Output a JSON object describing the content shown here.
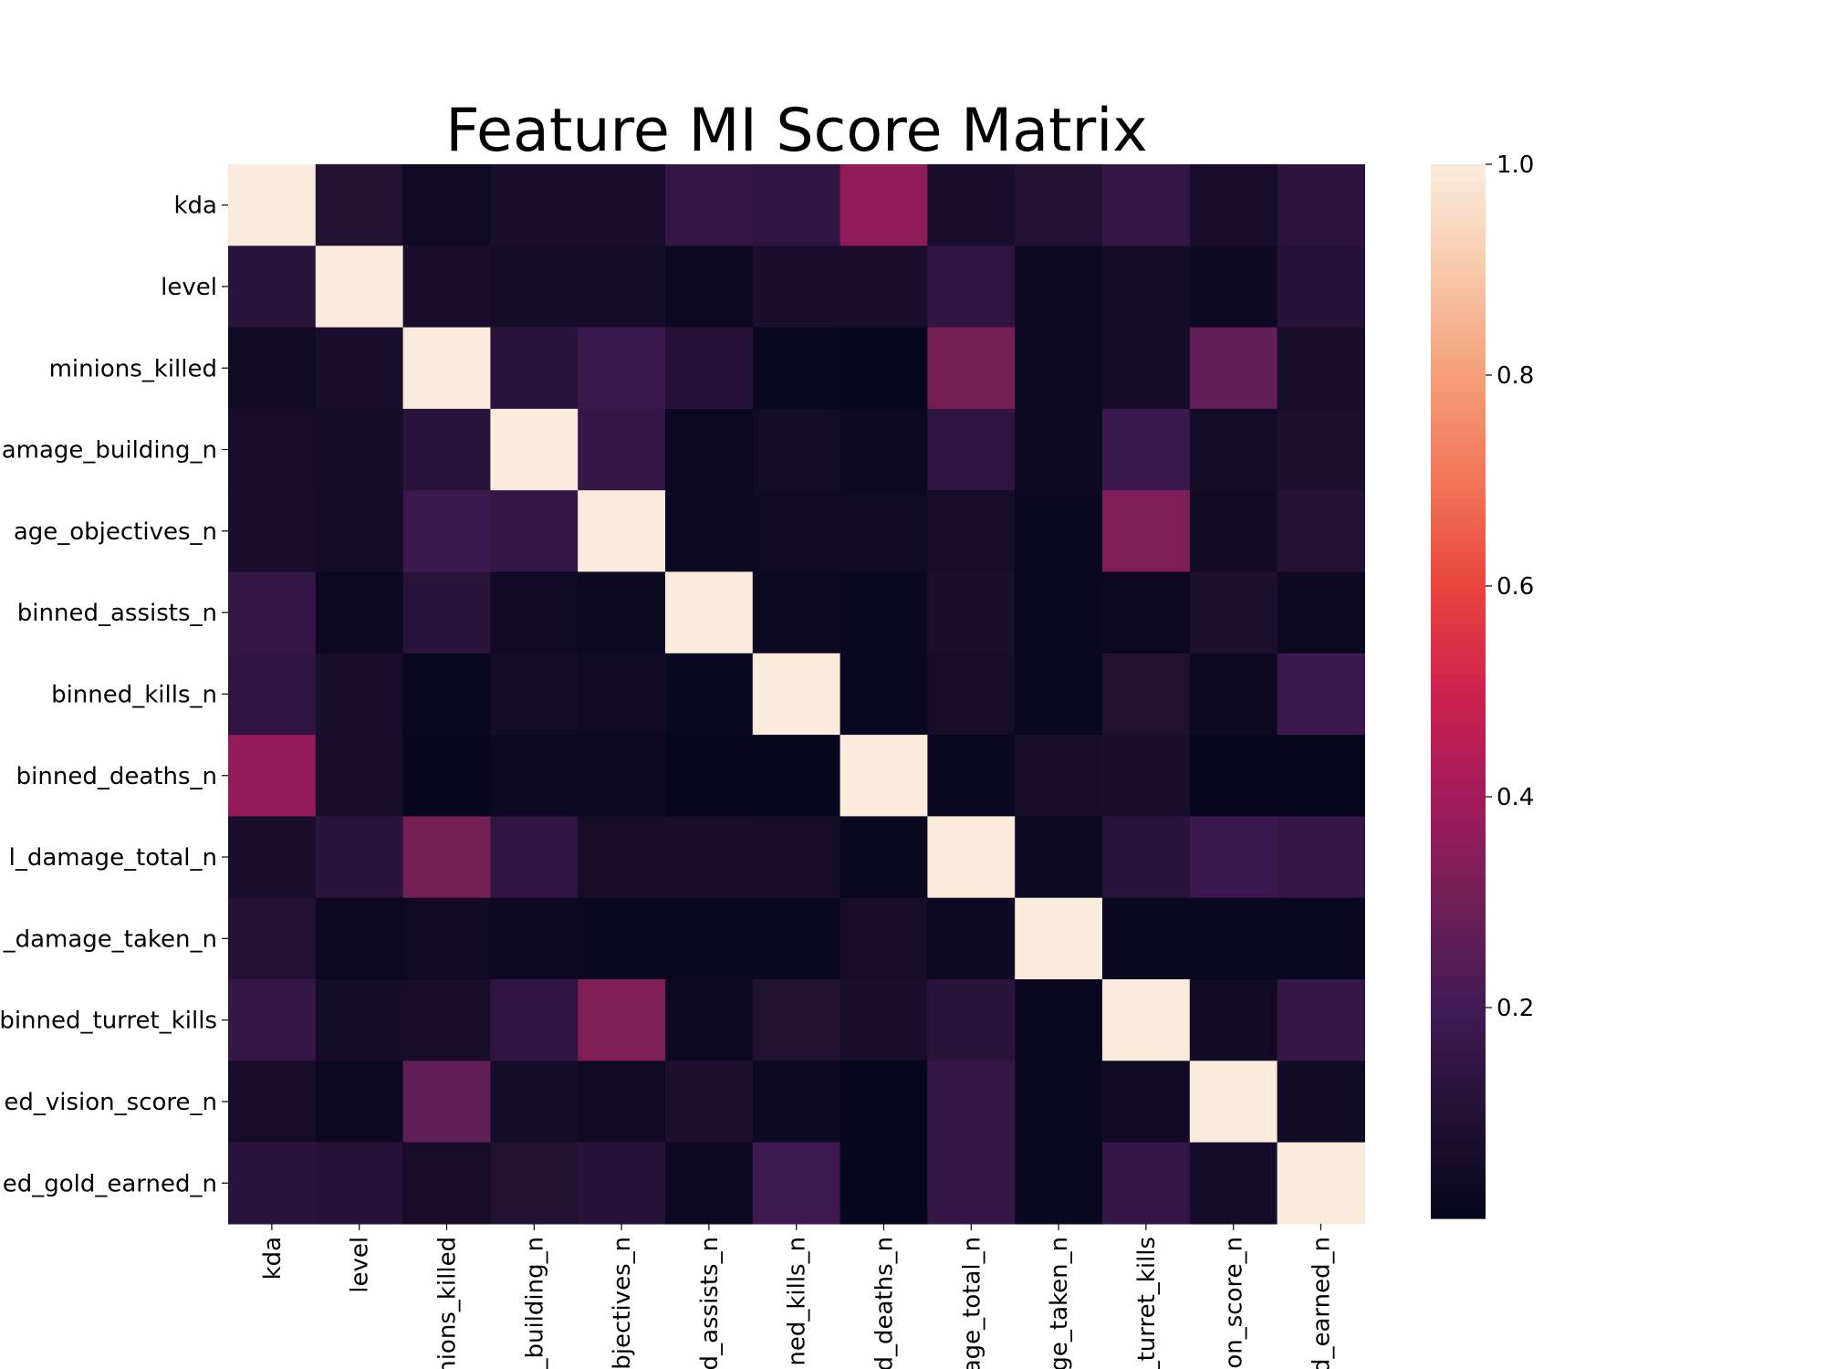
{
  "chart_data": {
    "type": "heatmap",
    "title": "Feature MI Score Matrix",
    "colormap": "rocket",
    "row_labels": [
      "kda",
      "level",
      "minions_killed",
      "damage_building_n",
      "damage_objectives_n",
      "binned_assists_n",
      "binned_kills_n",
      "binned_deaths_n",
      "binned_damage_total_n",
      "binned_damage_taken_n",
      "binned_turret_kills",
      "binned_vision_score_n",
      "binned_gold_earned_n"
    ],
    "visible_row_labels": [
      "kda",
      "level",
      "minions_killed",
      "amage_building_n",
      "age_objectives_n",
      "binned_assists_n",
      "binned_kills_n",
      "binned_deaths_n",
      "l_damage_total_n",
      "_damage_taken_n",
      "binned_turret_kills",
      "ed_vision_score_n",
      "ed_gold_earned_n"
    ],
    "visible_column_labels": [
      "kda",
      "level",
      "inions_killed",
      "_building_n",
      "bjectives_n",
      "d_assists_n",
      "ned_kills_n",
      "d_deaths_n",
      "age_total_n",
      "ge_taken_n",
      "_turret_kills",
      "on_score_n",
      "d_earned_n"
    ],
    "values": [
      [
        1.0,
        0.09,
        0.04,
        0.07,
        0.07,
        0.15,
        0.14,
        0.36,
        0.07,
        0.1,
        0.16,
        0.06,
        0.13
      ],
      [
        0.12,
        1.0,
        0.07,
        0.05,
        0.05,
        0.03,
        0.07,
        0.07,
        0.14,
        0.03,
        0.05,
        0.03,
        0.11
      ],
      [
        0.04,
        0.07,
        1.0,
        0.12,
        0.18,
        0.11,
        0.02,
        0.01,
        0.31,
        0.03,
        0.05,
        0.27,
        0.06
      ],
      [
        0.06,
        0.05,
        0.12,
        1.0,
        0.16,
        0.03,
        0.05,
        0.03,
        0.14,
        0.03,
        0.18,
        0.05,
        0.08
      ],
      [
        0.07,
        0.05,
        0.18,
        0.16,
        1.0,
        0.03,
        0.04,
        0.04,
        0.06,
        0.02,
        0.33,
        0.04,
        0.1
      ],
      [
        0.15,
        0.03,
        0.12,
        0.04,
        0.03,
        1.0,
        0.03,
        0.02,
        0.07,
        0.02,
        0.03,
        0.08,
        0.03
      ],
      [
        0.14,
        0.07,
        0.02,
        0.05,
        0.04,
        0.02,
        1.0,
        0.02,
        0.06,
        0.02,
        0.09,
        0.03,
        0.18
      ],
      [
        0.37,
        0.07,
        0.01,
        0.03,
        0.03,
        0.01,
        0.01,
        1.0,
        0.02,
        0.06,
        0.07,
        0.01,
        0.01
      ],
      [
        0.07,
        0.12,
        0.31,
        0.14,
        0.06,
        0.07,
        0.06,
        0.02,
        1.0,
        0.03,
        0.12,
        0.18,
        0.16
      ],
      [
        0.1,
        0.03,
        0.04,
        0.03,
        0.02,
        0.02,
        0.02,
        0.06,
        0.03,
        1.0,
        0.02,
        0.02,
        0.02
      ],
      [
        0.16,
        0.05,
        0.06,
        0.14,
        0.33,
        0.03,
        0.09,
        0.07,
        0.12,
        0.02,
        1.0,
        0.04,
        0.16
      ],
      [
        0.06,
        0.03,
        0.27,
        0.05,
        0.04,
        0.08,
        0.03,
        0.01,
        0.16,
        0.02,
        0.04,
        1.0,
        0.04
      ],
      [
        0.12,
        0.11,
        0.06,
        0.09,
        0.11,
        0.03,
        0.19,
        0.01,
        0.16,
        0.02,
        0.16,
        0.05,
        1.0
      ]
    ],
    "colorbar": {
      "range": [
        0.0,
        1.0
      ],
      "ticks": [
        0.2,
        0.4,
        0.6,
        0.8,
        1.0
      ],
      "tick_labels": [
        "0.2",
        "0.4",
        "0.6",
        "0.8",
        "1.0"
      ]
    },
    "grid": false,
    "legend": "colorbar-right"
  }
}
